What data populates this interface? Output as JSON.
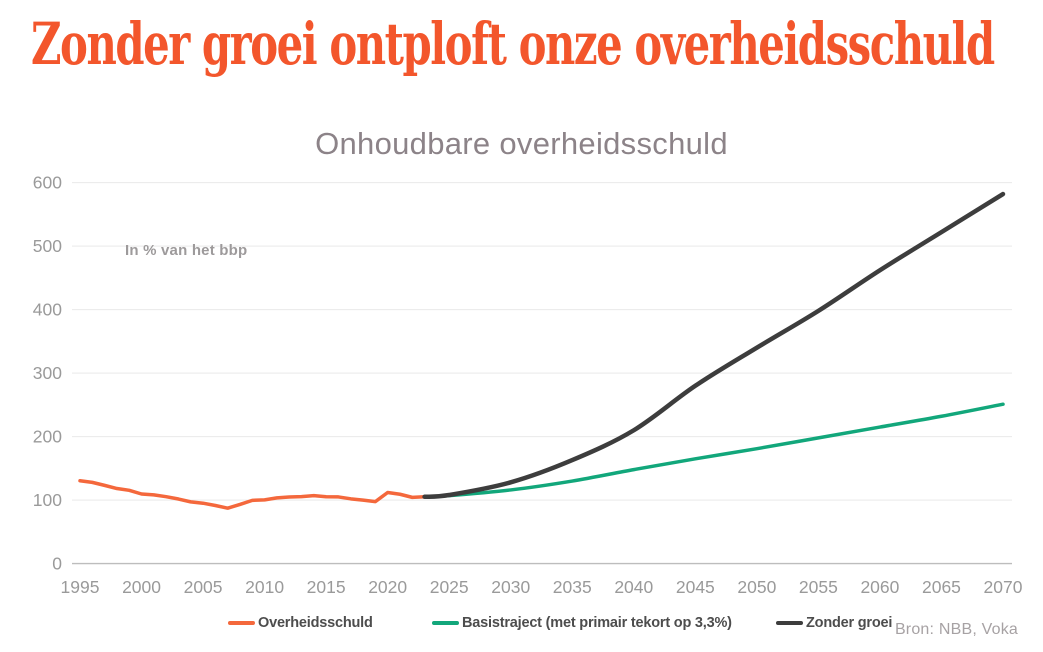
{
  "header": {
    "title": "Zonder groei ontploft onze overheidsschuld",
    "title_color": "#f3562c"
  },
  "chart": {
    "title": "Onhoudbare overheidsschuld",
    "unit_label": "In % van het bbp",
    "source": "Bron: NBB, Voka",
    "legend": [
      {
        "label": "Overheidsschuld",
        "color": "#f4683c"
      },
      {
        "label": "Basistraject (met primair tekort op 3,3%)",
        "color": "#12a77b"
      },
      {
        "label": "Zonder groei",
        "color": "#3d3d3d"
      }
    ]
  },
  "chart_data": {
    "type": "line",
    "title": "Onhoudbare overheidsschuld",
    "ylabel": "In % van het bbp",
    "xlabel": "",
    "ylim": [
      0,
      600
    ],
    "xlim": [
      1995,
      2070
    ],
    "yticks": [
      0,
      100,
      200,
      300,
      400,
      500,
      600
    ],
    "xticks": [
      1995,
      2000,
      2005,
      2010,
      2015,
      2020,
      2025,
      2030,
      2035,
      2040,
      2045,
      2050,
      2055,
      2060,
      2065,
      2070
    ],
    "grid": "horizontal",
    "legend_position": "bottom",
    "axis_text_color": "#9a9a9a",
    "gridline_color": "#e9e9e9",
    "baseline_color": "#bdbdbd",
    "series": [
      {
        "name": "Overheidsschuld",
        "color": "#f4683c",
        "smooth": false,
        "x": [
          1995,
          1996,
          1997,
          1998,
          1999,
          2000,
          2001,
          2002,
          2003,
          2004,
          2005,
          2006,
          2007,
          2008,
          2009,
          2010,
          2011,
          2012,
          2013,
          2014,
          2015,
          2016,
          2017,
          2018,
          2019,
          2020,
          2021,
          2022,
          2023
        ],
        "values": [
          130.5,
          127.9,
          123.2,
          118.2,
          115.4,
          109.6,
          108.2,
          105.4,
          101.7,
          97.2,
          95.1,
          91.5,
          87.3,
          93.2,
          99.6,
          100.3,
          103.5,
          104.8,
          105.5,
          107.0,
          105.2,
          105.0,
          102.0,
          99.9,
          97.6,
          112.0,
          109.2,
          104.3,
          105.2
        ]
      },
      {
        "name": "Basistraject (met primair tekort op 3,3%)",
        "color": "#12a77b",
        "smooth": true,
        "x": [
          2023,
          2025,
          2030,
          2035,
          2040,
          2045,
          2050,
          2055,
          2060,
          2065,
          2070
        ],
        "values": [
          105.2,
          107,
          116,
          130,
          148,
          165,
          181,
          198,
          215,
          232,
          251
        ]
      },
      {
        "name": "Zonder groei",
        "color": "#3d3d3d",
        "smooth": true,
        "x": [
          2023,
          2025,
          2030,
          2035,
          2040,
          2045,
          2050,
          2055,
          2060,
          2065,
          2070
        ],
        "values": [
          105.2,
          108,
          128,
          163,
          210,
          280,
          340,
          398,
          462,
          522,
          582
        ]
      }
    ]
  }
}
